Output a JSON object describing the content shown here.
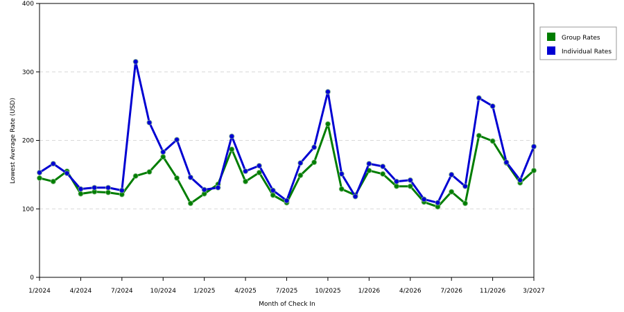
{
  "chart_data": {
    "type": "line",
    "xlabel": "Month of Check In",
    "ylabel": "Lowest Average Rate (USD)",
    "ylim": [
      0,
      400
    ],
    "yticks": [
      "0",
      "100",
      "200",
      "300",
      "400"
    ],
    "x_tick_labels": [
      "1/2024",
      "4/2024",
      "7/2024",
      "10/2024",
      "1/2025",
      "4/2025",
      "7/2025",
      "10/2025",
      "1/2026",
      "4/2026",
      "7/2026",
      "11/2026",
      "3/2027"
    ],
    "x_tick_index": [
      0,
      3,
      6,
      9,
      12,
      15,
      18,
      21,
      24,
      27,
      30,
      33,
      36
    ],
    "x": [
      "1/2024",
      "2/2024",
      "3/2024",
      "4/2024",
      "5/2024",
      "6/2024",
      "7/2024",
      "8/2024",
      "9/2024",
      "10/2024",
      "11/2024",
      "12/2024",
      "1/2025",
      "2/2025",
      "3/2025",
      "4/2025",
      "5/2025",
      "6/2025",
      "7/2025",
      "8/2025",
      "9/2025",
      "10/2025",
      "11/2025",
      "12/2025",
      "1/2026",
      "2/2026",
      "3/2026",
      "4/2026",
      "5/2026",
      "6/2026",
      "7/2026",
      "8/2026",
      "11/2026",
      "12/2026",
      "1/2027",
      "2/2027",
      "3/2027"
    ],
    "grid": true,
    "legend_position": "right",
    "series": [
      {
        "name": "Group Rates",
        "color": "#007d00",
        "values": [
          145,
          140,
          155,
          122,
          125,
          124,
          121,
          148,
          154,
          176,
          145,
          108,
          122,
          136,
          187,
          140,
          153,
          120,
          109,
          149,
          168,
          224,
          129,
          120,
          156,
          151,
          133,
          133,
          110,
          103,
          125,
          108,
          207,
          199,
          167,
          138,
          156
        ]
      },
      {
        "name": "Individual Rates",
        "color": "#0000d2",
        "values": [
          153,
          166,
          152,
          129,
          131,
          131,
          127,
          315,
          226,
          183,
          201,
          146,
          128,
          131,
          206,
          155,
          163,
          127,
          112,
          167,
          190,
          271,
          151,
          118,
          166,
          162,
          140,
          142,
          114,
          109,
          150,
          133,
          262,
          250,
          168,
          142,
          191
        ]
      }
    ]
  }
}
